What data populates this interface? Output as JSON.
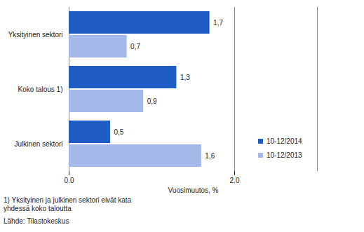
{
  "chart_data": {
    "type": "bar",
    "orientation": "horizontal",
    "categories": [
      "Yksityinen sektori",
      "Koko talous 1)",
      "Julkinen sektori"
    ],
    "series": [
      {
        "name": "10-12/2014",
        "color": "#1f5cc4",
        "values": [
          1.7,
          1.3,
          0.5
        ],
        "value_labels": [
          "1,7",
          "1,3",
          "0,5"
        ]
      },
      {
        "name": "10-12/2013",
        "color": "#a4b9ea",
        "values": [
          0.7,
          0.9,
          1.6
        ],
        "value_labels": [
          "0,7",
          "0,9",
          "1,6"
        ]
      }
    ],
    "xlim": [
      0,
      3
    ],
    "xticks": [
      0,
      2
    ],
    "x_label": "Vuosimuutos, %",
    "grid": true,
    "data_labels": true,
    "legend": "lower right",
    "annotations": [
      "1) Yksityinen ja julkinen sektori eivät kata yhdessä koko taloutta",
      "Lähde: Tilastokeskus"
    ]
  }
}
